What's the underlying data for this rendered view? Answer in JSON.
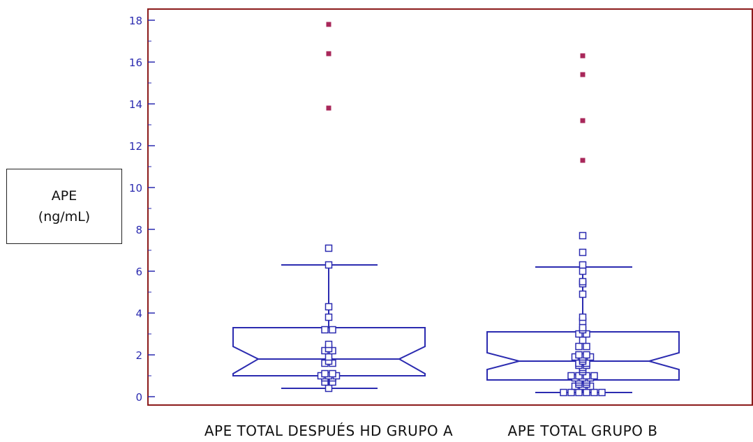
{
  "chart_data": {
    "type": "box",
    "title": "",
    "ylabel": [
      "APE",
      "(ng/mL)"
    ],
    "xlabel": "",
    "ylim": [
      0,
      18
    ],
    "yticks": [
      0,
      2,
      4,
      6,
      8,
      10,
      12,
      14,
      16,
      18
    ],
    "notched": true,
    "categories": [
      "APE TOTAL DESPUÉS HD GRUPO A",
      "APE TOTAL GRUPO B"
    ],
    "series": [
      {
        "name": "",
        "box": {
          "whisker_low": 0.4,
          "q1": 1.0,
          "median": 1.8,
          "q3": 3.3,
          "whisker_high": 6.3,
          "notch_low": 1.1,
          "notch_high": 2.4
        },
        "points": [
          0.4,
          0.7,
          0.7,
          0.9,
          0.9,
          1.0,
          1.0,
          1.0,
          1.1,
          1.1,
          1.6,
          1.6,
          1.7,
          1.9,
          2.2,
          2.2,
          2.3,
          2.5,
          3.2,
          3.2,
          3.8,
          4.3,
          6.3,
          7.1
        ],
        "outliers": [
          13.8,
          16.4,
          17.8
        ]
      },
      {
        "name": "",
        "box": {
          "whisker_low": 0.2,
          "q1": 0.8,
          "median": 1.7,
          "q3": 3.1,
          "whisker_high": 6.2,
          "notch_low": 1.3,
          "notch_high": 2.1
        },
        "points": [
          0.2,
          0.2,
          0.2,
          0.2,
          0.2,
          0.2,
          0.5,
          0.5,
          0.5,
          0.6,
          0.6,
          0.7,
          0.7,
          0.8,
          0.8,
          0.9,
          0.9,
          0.9,
          1.0,
          1.0,
          1.0,
          1.0,
          1.2,
          1.3,
          1.4,
          1.5,
          1.5,
          1.6,
          1.6,
          1.7,
          1.8,
          1.9,
          1.9,
          1.9,
          2.0,
          2.0,
          2.4,
          2.4,
          2.7,
          3.0,
          3.0,
          3.2,
          3.3,
          3.6,
          3.8,
          4.9,
          5.4,
          5.5,
          6.0,
          6.3,
          6.9,
          7.7
        ],
        "outliers": [
          11.3,
          13.2,
          15.4,
          16.3
        ]
      }
    ],
    "grid": false,
    "legend": "none",
    "colors": {
      "box": "#2b2bb0",
      "points": "#2b2bb0",
      "outliers": "#a8275a",
      "frame": "#8b1a1a",
      "ticks": "#2b2bb0"
    }
  }
}
